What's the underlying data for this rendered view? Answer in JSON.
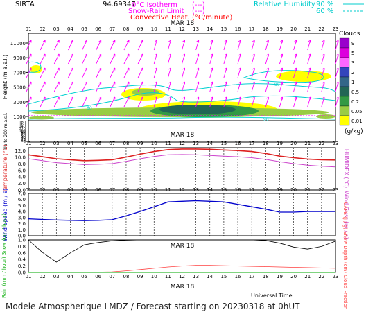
{
  "header": {
    "site": "SIRTA",
    "coords": "94.69347",
    "legend_left": [
      {
        "label": "0°C Isotherm",
        "line": "(---)",
        "color": "#ff00ff"
      },
      {
        "label": "Snow-Rain Limit",
        "line": "(---)",
        "color": "#ff00ff"
      },
      {
        "label": "Convective Heat.",
        "line": "(°C/minute)",
        "color": "#ff0000"
      }
    ],
    "legend_right": [
      {
        "label": "Relative Humidity",
        "value": "90 %",
        "color": "#00cccc"
      },
      {
        "label": "",
        "value": "60 %",
        "color": "#00cccc"
      }
    ]
  },
  "date_label": "MAR 18",
  "hours": [
    "01",
    "02",
    "03",
    "04",
    "05",
    "06",
    "07",
    "08",
    "09",
    "10",
    "11",
    "12",
    "13",
    "14",
    "15",
    "16",
    "17",
    "18",
    "19",
    "20",
    "21",
    "22",
    "23"
  ],
  "footer": {
    "universal_time": "Universal Time",
    "title": "Modele Atmospherique LMDZ / Forecast starting on 20230318 at 0hUT"
  },
  "colors": {
    "temperature": "#dd2020",
    "humidex": "#cc44cc",
    "wind": "#0000cc",
    "cloud_fraction": "#000000",
    "cape": "#ff4040",
    "rain": "#00aa00",
    "wind_arrow": "#ff00ff",
    "rh_contour": "#00d0d0"
  },
  "chart_data": [
    {
      "type": "heatmap",
      "panel": "clouds",
      "ylabel": "Height  (m a.s.l.)",
      "ylabel2": "Up to 200 m a.s.l.",
      "yticks_upper": [
        1000,
        3000,
        5000,
        7000,
        9000,
        11000
      ],
      "yticks_lower": [
        0,
        10,
        20,
        30,
        40,
        50,
        60,
        70,
        80,
        90,
        100,
        120,
        140,
        160,
        180
      ],
      "colorbar": {
        "title": "Clouds",
        "unit": "(g/kg)",
        "levels": [
          "9",
          "5",
          "3",
          "2",
          "1",
          "0.5",
          "0.2",
          "0.05",
          "0.01"
        ],
        "colors": [
          "#9900cc",
          "#dd00dd",
          "#ff66ff",
          "#3344bb",
          "#336688",
          "#226655",
          "#339944",
          "#99cc44",
          "#ffff00"
        ]
      },
      "contour_labels": [
        "60",
        "90"
      ]
    },
    {
      "type": "line",
      "panel": "temperature",
      "ylabel": "Temperature (°C)",
      "ylabel_right": "HUMIDEX (°C)",
      "yticks": [
        "0.0",
        "2.0",
        "4.0",
        "6.0",
        "8.0",
        "10.0",
        "12.0"
      ],
      "ylim": [
        0,
        13
      ],
      "x": [
        "01",
        "02",
        "03",
        "04",
        "05",
        "06",
        "07",
        "08",
        "09",
        "10",
        "11",
        "12",
        "13",
        "14",
        "15",
        "16",
        "17",
        "18",
        "19",
        "20",
        "21",
        "22",
        "23"
      ],
      "series": [
        {
          "name": "Temperature",
          "values": [
            10.8,
            10.2,
            9.6,
            9.3,
            9.0,
            9.1,
            9.3,
            10.1,
            11.0,
            11.8,
            12.4,
            12.6,
            12.6,
            12.5,
            12.3,
            12.1,
            11.8,
            11.2,
            10.4,
            9.9,
            9.5,
            9.3,
            9.2
          ]
        },
        {
          "name": "HUMIDEX",
          "values": [
            9.6,
            9.0,
            8.4,
            8.1,
            7.8,
            7.9,
            8.1,
            8.8,
            9.6,
            10.3,
            10.8,
            10.9,
            10.8,
            10.6,
            10.4,
            10.2,
            9.9,
            9.4,
            8.7,
            8.1,
            7.6,
            7.3,
            7.1
          ]
        }
      ]
    },
    {
      "type": "line",
      "panel": "wind",
      "ylabel": "Wind Speed (m / s)",
      "ylabel_right": "Wind Gust (m / s)",
      "yticks": [
        "0.0",
        "1.0",
        "2.0",
        "3.0",
        "4.0",
        "5.0",
        "6.0",
        "7.0"
      ],
      "ylim": [
        0,
        7
      ],
      "x": [
        "01",
        "02",
        "03",
        "04",
        "05",
        "06",
        "07",
        "08",
        "09",
        "10",
        "11",
        "12",
        "13",
        "14",
        "15",
        "16",
        "17",
        "18",
        "19",
        "20",
        "21",
        "22",
        "23"
      ],
      "series": [
        {
          "name": "Wind Speed",
          "values": [
            2.8,
            2.7,
            2.6,
            2.55,
            2.5,
            2.55,
            2.65,
            3.3,
            4.0,
            4.8,
            5.6,
            5.7,
            5.8,
            5.7,
            5.6,
            5.2,
            4.8,
            4.4,
            3.9,
            3.9,
            4.0,
            4.0,
            4.0
          ]
        }
      ]
    },
    {
      "type": "line",
      "panel": "precip",
      "ylabel": "Rain (mm / hour)  Snow (cm / hour)",
      "ylabel_right": "CAPE (J / g)  Snow Depth (cm)  Cloud Fraction",
      "yticks": [
        "0.0",
        "0.2",
        "0.4",
        "0.6",
        "0.8",
        "1.0"
      ],
      "ylim": [
        0,
        1
      ],
      "x": [
        "01",
        "02",
        "03",
        "04",
        "05",
        "06",
        "07",
        "08",
        "09",
        "10",
        "11",
        "12",
        "13",
        "14",
        "15",
        "16",
        "17",
        "18",
        "19",
        "20",
        "21",
        "22",
        "23"
      ],
      "series": [
        {
          "name": "Cloud Fraction",
          "values": [
            1.0,
            0.62,
            0.32,
            0.6,
            0.85,
            0.92,
            0.97,
            0.99,
            1.0,
            1.0,
            1.0,
            1.0,
            1.0,
            1.0,
            1.0,
            1.0,
            1.0,
            0.98,
            0.9,
            0.78,
            0.72,
            0.8,
            0.96
          ]
        },
        {
          "name": "CAPE",
          "values": [
            0.0,
            0.0,
            0.0,
            0.0,
            0.0,
            0.01,
            0.02,
            0.05,
            0.09,
            0.13,
            0.17,
            0.2,
            0.22,
            0.22,
            0.21,
            0.2,
            0.19,
            0.18,
            0.17,
            0.16,
            0.15,
            0.14,
            0.13
          ]
        },
        {
          "name": "Rain",
          "values": [
            0,
            0,
            0,
            0,
            0,
            0,
            0,
            0,
            0,
            0,
            0,
            0,
            0,
            0,
            0,
            0,
            0,
            0,
            0,
            0,
            0,
            0,
            0
          ]
        }
      ]
    }
  ]
}
